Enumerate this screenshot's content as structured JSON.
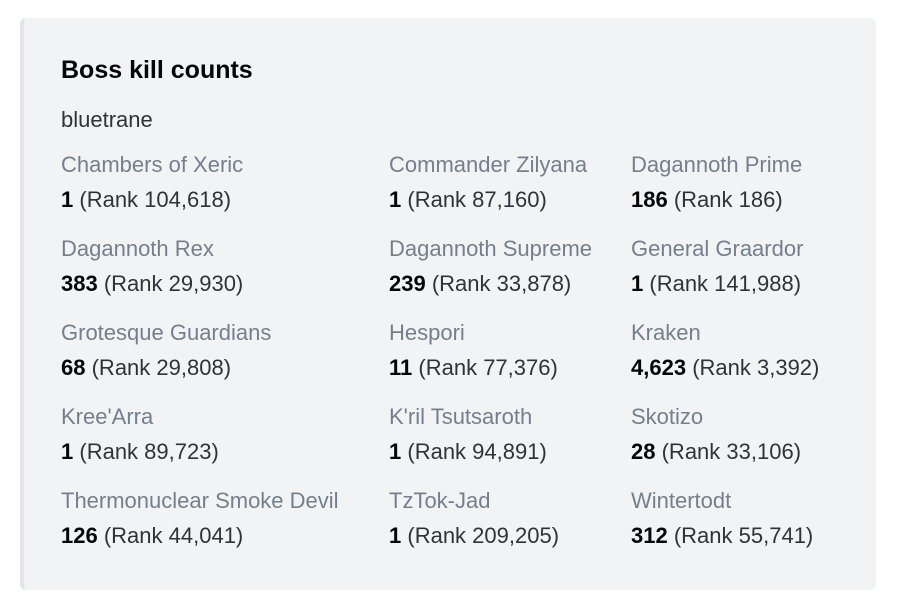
{
  "embed": {
    "title": "Boss kill counts",
    "description": "bluetrane",
    "accent_color": "#e3e5e8",
    "fields": [
      {
        "name": "Chambers of Xeric",
        "count": "1",
        "rank": "(Rank 104,618)"
      },
      {
        "name": "Commander Zilyana",
        "count": "1",
        "rank": "(Rank 87,160)"
      },
      {
        "name": "Dagannoth Prime",
        "count": "186",
        "rank": "(Rank 186)"
      },
      {
        "name": "Dagannoth Rex",
        "count": "383",
        "rank": "(Rank 29,930)"
      },
      {
        "name": "Dagannoth Supreme",
        "count": "239",
        "rank": "(Rank 33,878)"
      },
      {
        "name": "General Graardor",
        "count": "1",
        "rank": "(Rank 141,988)"
      },
      {
        "name": "Grotesque Guardians",
        "count": "68",
        "rank": "(Rank 29,808)"
      },
      {
        "name": "Hespori",
        "count": "11",
        "rank": "(Rank 77,376)"
      },
      {
        "name": "Kraken",
        "count": "4,623",
        "rank": "(Rank 3,392)"
      },
      {
        "name": "Kree'Arra",
        "count": "1",
        "rank": "(Rank 89,723)"
      },
      {
        "name": "K'ril Tsutsaroth",
        "count": "1",
        "rank": "(Rank 94,891)"
      },
      {
        "name": "Skotizo",
        "count": "28",
        "rank": "(Rank 33,106)"
      },
      {
        "name": "Thermonuclear Smoke Devil",
        "count": "126",
        "rank": "(Rank 44,041)"
      },
      {
        "name": "TzTok-Jad",
        "count": "1",
        "rank": "(Rank 209,205)"
      },
      {
        "name": "Wintertodt",
        "count": "312",
        "rank": "(Rank 55,741)"
      }
    ]
  }
}
